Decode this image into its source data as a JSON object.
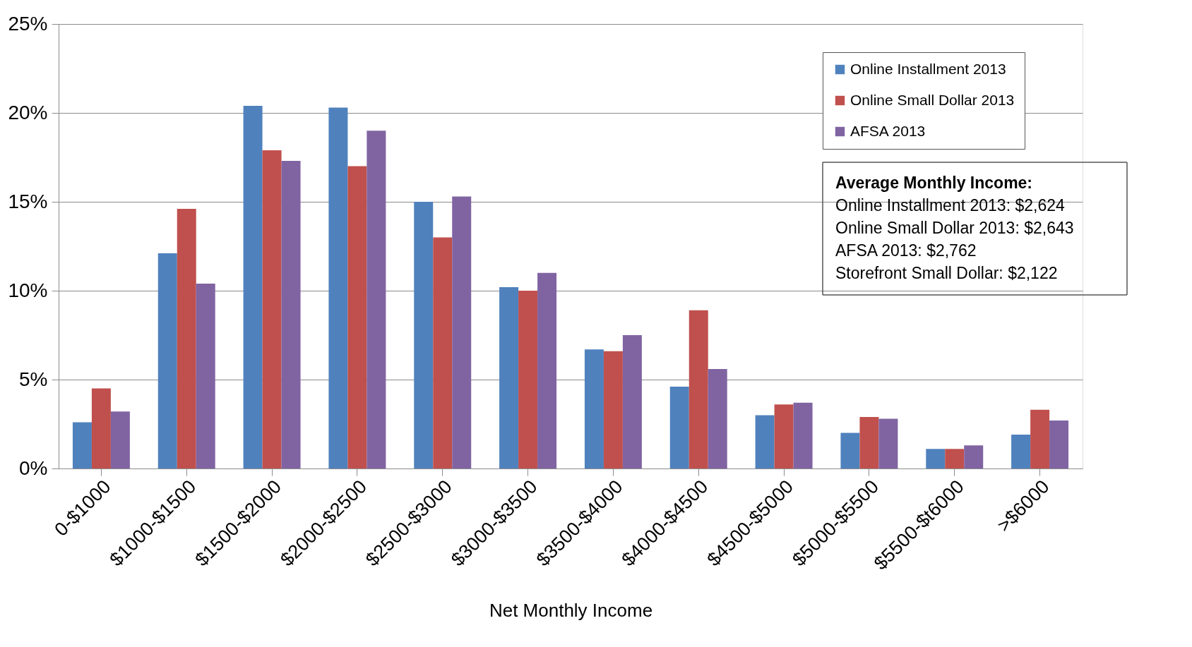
{
  "chart_data": {
    "type": "bar",
    "xlabel": "Net Monthly Income",
    "categories": [
      "0-$1000",
      "$1000-$1500",
      "$1500-$2000",
      "$2000-$2500",
      "$2500-$3000",
      "$3000-$3500",
      "$3500-$4000",
      "$4000-$4500",
      "$4500-$5000",
      "$5000-$5500",
      "$5500-$t6000",
      ">$6000"
    ],
    "series": [
      {
        "name": "Online Installment 2013",
        "color": "#4f81bd",
        "values": [
          2.6,
          12.1,
          20.4,
          20.3,
          15.0,
          10.2,
          6.7,
          4.6,
          3.0,
          2.0,
          1.1,
          1.9
        ]
      },
      {
        "name": "Online Small Dollar 2013",
        "color": "#c0504d",
        "values": [
          4.5,
          14.6,
          17.9,
          17.0,
          13.0,
          10.0,
          6.6,
          8.9,
          3.6,
          2.9,
          1.1,
          3.3
        ]
      },
      {
        "name": "AFSA 2013",
        "color": "#8064a2",
        "values": [
          3.2,
          10.4,
          17.3,
          19.0,
          15.3,
          11.0,
          7.5,
          5.6,
          3.7,
          2.8,
          1.3,
          2.7
        ]
      }
    ],
    "ylim": [
      0,
      25
    ],
    "yticks": [
      {
        "value": 0,
        "label": "0%"
      },
      {
        "value": 5,
        "label": "5%"
      },
      {
        "value": 10,
        "label": "10%"
      },
      {
        "value": 15,
        "label": "15%"
      },
      {
        "value": 20,
        "label": "20%"
      },
      {
        "value": 25,
        "label": "25%"
      }
    ],
    "grid": "y",
    "legend": "top right",
    "annotations": [
      "Average Monthly Income:",
      "Online Installment 2013: $2,624",
      "Online Small Dollar 2013: $2,643",
      "AFSA 2013: $2,762",
      "Storefront Small Dollar: $2,122"
    ]
  }
}
